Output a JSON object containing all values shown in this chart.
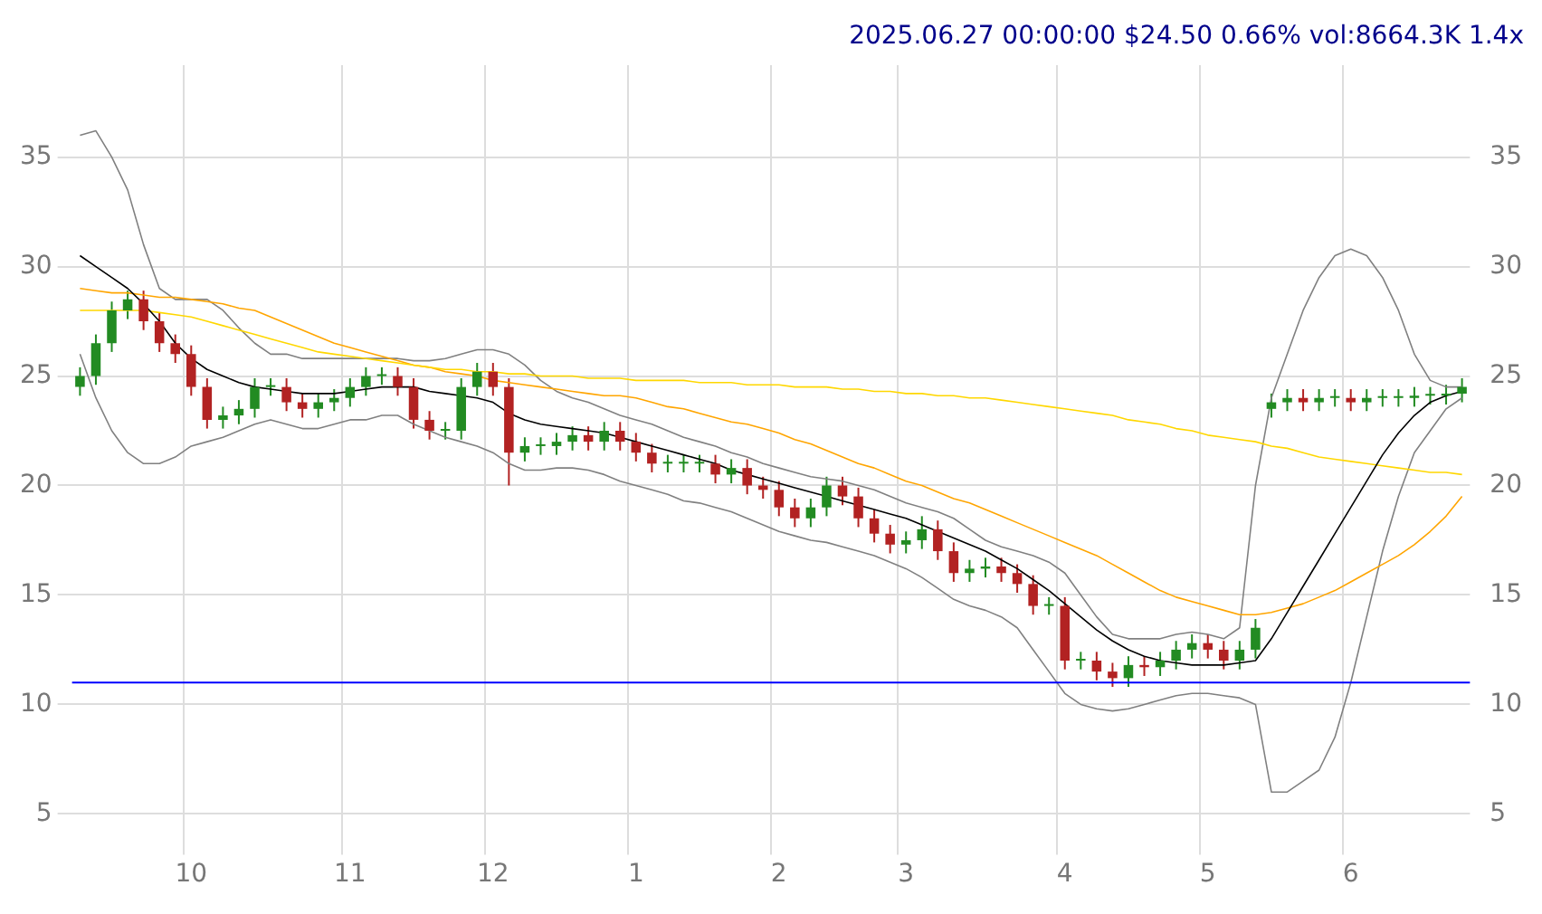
{
  "chart_data": {
    "type": "candlestick",
    "title": "2025.06.27 00:00:00 $24.50 0.66% vol:8664.3K 1.4x",
    "categories": [
      null,
      null,
      null,
      null,
      null,
      null,
      null,
      "10",
      null,
      null,
      null,
      null,
      null,
      null,
      null,
      null,
      null,
      "11",
      null,
      null,
      null,
      null,
      null,
      null,
      null,
      null,
      "12",
      null,
      null,
      null,
      null,
      null,
      null,
      null,
      null,
      "1",
      null,
      null,
      null,
      null,
      null,
      null,
      null,
      null,
      "2",
      null,
      null,
      null,
      null,
      null,
      null,
      null,
      "3",
      null,
      null,
      null,
      null,
      null,
      null,
      null,
      null,
      null,
      "4",
      null,
      null,
      null,
      null,
      null,
      null,
      null,
      null,
      "5",
      null,
      null,
      null,
      null,
      null,
      null,
      null,
      null,
      "6",
      null,
      null,
      null,
      null,
      null,
      null,
      null
    ],
    "ohlc": [
      [
        24.5,
        25.4,
        24.1,
        25
      ],
      [
        25,
        26.9,
        24.6,
        26.5
      ],
      [
        26.5,
        28.4,
        26.1,
        28
      ],
      [
        28,
        28.9,
        27.6,
        28.5
      ],
      [
        28.5,
        28.9,
        27.1,
        27.5
      ],
      [
        27.5,
        27.9,
        26.1,
        26.5
      ],
      [
        26.5,
        26.9,
        25.6,
        26
      ],
      [
        26,
        26.4,
        24.1,
        24.5
      ],
      [
        24.5,
        24.9,
        22.6,
        23
      ],
      [
        23,
        23.6,
        22.6,
        23.2
      ],
      [
        23.2,
        23.9,
        22.8,
        23.5
      ],
      [
        23.5,
        24.9,
        23.1,
        24.5
      ],
      [
        24.5,
        24.9,
        24.1,
        24.5
      ],
      [
        24.5,
        24.9,
        23.4,
        23.8
      ],
      [
        23.8,
        24.2,
        23.1,
        23.5
      ],
      [
        23.5,
        24.2,
        23.1,
        23.8
      ],
      [
        23.8,
        24.4,
        23.4,
        24
      ],
      [
        24,
        24.9,
        23.6,
        24.5
      ],
      [
        24.5,
        25.4,
        24.1,
        25
      ],
      [
        25,
        25.4,
        24.6,
        25
      ],
      [
        25,
        25.4,
        24.1,
        24.5
      ],
      [
        24.5,
        24.9,
        22.6,
        23
      ],
      [
        23,
        23.4,
        22.1,
        22.5
      ],
      [
        22.5,
        22.9,
        22.1,
        22.5
      ],
      [
        22.5,
        24.9,
        22.1,
        24.5
      ],
      [
        24.5,
        25.6,
        24.1,
        25.2
      ],
      [
        25.2,
        25.6,
        24.1,
        24.5
      ],
      [
        24.5,
        24.9,
        20,
        21.5
      ],
      [
        21.5,
        22.2,
        21.1,
        21.8
      ],
      [
        21.8,
        22.2,
        21.4,
        21.8
      ],
      [
        21.8,
        22.4,
        21.4,
        22
      ],
      [
        22,
        22.7,
        21.6,
        22.3
      ],
      [
        22.3,
        22.7,
        21.6,
        22
      ],
      [
        22,
        22.9,
        21.6,
        22.5
      ],
      [
        22.5,
        22.9,
        21.6,
        22
      ],
      [
        22,
        22.4,
        21.1,
        21.5
      ],
      [
        21.5,
        21.9,
        20.6,
        21
      ],
      [
        21,
        21.4,
        20.6,
        21
      ],
      [
        21,
        21.4,
        20.6,
        21
      ],
      [
        21,
        21.4,
        20.6,
        21
      ],
      [
        21,
        21.4,
        20.1,
        20.5
      ],
      [
        20.5,
        21.2,
        20.1,
        20.8
      ],
      [
        20.8,
        21.2,
        19.6,
        20
      ],
      [
        20,
        20.4,
        19.4,
        19.8
      ],
      [
        19.8,
        20.2,
        18.6,
        19
      ],
      [
        19,
        19.4,
        18.1,
        18.5
      ],
      [
        18.5,
        19.4,
        18.1,
        19
      ],
      [
        19,
        20.4,
        18.6,
        20
      ],
      [
        20,
        20.4,
        19.1,
        19.5
      ],
      [
        19.5,
        19.9,
        18.1,
        18.5
      ],
      [
        18.5,
        18.9,
        17.4,
        17.8
      ],
      [
        17.8,
        18.2,
        16.9,
        17.3
      ],
      [
        17.3,
        17.9,
        16.9,
        17.5
      ],
      [
        17.5,
        18.6,
        17.1,
        18
      ],
      [
        18,
        18.4,
        16.6,
        17
      ],
      [
        17,
        17.4,
        15.6,
        16
      ],
      [
        16,
        16.6,
        15.6,
        16.2
      ],
      [
        16.2,
        16.7,
        15.8,
        16.3
      ],
      [
        16.3,
        16.7,
        15.6,
        16
      ],
      [
        16,
        16.4,
        15.1,
        15.5
      ],
      [
        15.5,
        15.9,
        14.1,
        14.5
      ],
      [
        14.5,
        14.9,
        14.1,
        14.5
      ],
      [
        14.5,
        14.9,
        11.6,
        12
      ],
      [
        12,
        12.4,
        11.6,
        12
      ],
      [
        12,
        12.4,
        11.1,
        11.5
      ],
      [
        11.5,
        11.9,
        10.8,
        11.2
      ],
      [
        11.2,
        12.2,
        10.8,
        11.8
      ],
      [
        11.8,
        12.2,
        11.3,
        11.7
      ],
      [
        11.7,
        12.4,
        11.3,
        12
      ],
      [
        12,
        12.9,
        11.6,
        12.5
      ],
      [
        12.5,
        13.2,
        12.1,
        12.8
      ],
      [
        12.8,
        13.2,
        12.1,
        12.5
      ],
      [
        12.5,
        12.9,
        11.6,
        12
      ],
      [
        12,
        12.9,
        11.6,
        12.5
      ],
      [
        12.5,
        13.9,
        12.1,
        13.5
      ],
      [
        23.5,
        24.2,
        23.1,
        23.8
      ],
      [
        23.8,
        24.4,
        23.4,
        24
      ],
      [
        24,
        24.4,
        23.4,
        23.8
      ],
      [
        23.8,
        24.4,
        23.4,
        24
      ],
      [
        24,
        24.4,
        23.6,
        24
      ],
      [
        24,
        24.4,
        23.4,
        23.8
      ],
      [
        23.8,
        24.4,
        23.4,
        24
      ],
      [
        24,
        24.4,
        23.6,
        24
      ],
      [
        24,
        24.4,
        23.6,
        24
      ],
      [
        24,
        24.5,
        23.6,
        24.1
      ],
      [
        24.1,
        24.5,
        23.7,
        24.1
      ],
      [
        24.1,
        24.6,
        23.7,
        24.2
      ],
      [
        24.2,
        24.9,
        23.8,
        24.5
      ]
    ],
    "series": [
      {
        "type": "line",
        "color": "#000000",
        "values": [
          30.5,
          30,
          29.5,
          29,
          28.3,
          27.5,
          26.5,
          25.8,
          25.3,
          25,
          24.7,
          24.5,
          24.4,
          24.3,
          24.2,
          24.2,
          24.2,
          24.3,
          24.4,
          24.5,
          24.5,
          24.5,
          24.3,
          24.2,
          24.1,
          24,
          23.8,
          23.3,
          23,
          22.8,
          22.7,
          22.6,
          22.5,
          22.4,
          22.2,
          22,
          21.8,
          21.6,
          21.4,
          21.2,
          21,
          20.7,
          20.5,
          20.3,
          20.1,
          19.9,
          19.7,
          19.5,
          19.3,
          19.1,
          18.9,
          18.7,
          18.5,
          18.2,
          17.9,
          17.6,
          17.3,
          17,
          16.6,
          16.2,
          15.7,
          15.2,
          14.6,
          14,
          13.4,
          12.9,
          12.5,
          12.2,
          12,
          11.9,
          11.8,
          11.8,
          11.8,
          11.9,
          12,
          13,
          14.2,
          15.4,
          16.6,
          17.8,
          19,
          20.2,
          21.4,
          22.4,
          23.2,
          23.8,
          24.1,
          24.3
        ]
      },
      {
        "type": "line",
        "color": "#ffd700",
        "values": [
          28,
          28,
          28,
          28,
          28,
          27.9,
          27.8,
          27.7,
          27.5,
          27.3,
          27.1,
          26.9,
          26.7,
          26.5,
          26.3,
          26.1,
          26,
          25.9,
          25.8,
          25.7,
          25.6,
          25.5,
          25.4,
          25.3,
          25.3,
          25.2,
          25.2,
          25.1,
          25.1,
          25,
          25,
          25,
          24.9,
          24.9,
          24.9,
          24.8,
          24.8,
          24.8,
          24.8,
          24.7,
          24.7,
          24.7,
          24.6,
          24.6,
          24.6,
          24.5,
          24.5,
          24.5,
          24.4,
          24.4,
          24.3,
          24.3,
          24.2,
          24.2,
          24.1,
          24.1,
          24,
          24,
          23.9,
          23.8,
          23.7,
          23.6,
          23.5,
          23.4,
          23.3,
          23.2,
          23,
          22.9,
          22.8,
          22.6,
          22.5,
          22.3,
          22.2,
          22.1,
          22,
          21.8,
          21.7,
          21.5,
          21.3,
          21.2,
          21.1,
          21,
          20.9,
          20.8,
          20.7,
          20.6,
          20.6,
          20.5
        ]
      },
      {
        "type": "line",
        "color": "#ffa500",
        "values": [
          29,
          28.9,
          28.8,
          28.8,
          28.7,
          28.6,
          28.6,
          28.5,
          28.4,
          28.3,
          28.1,
          28,
          27.7,
          27.4,
          27.1,
          26.8,
          26.5,
          26.3,
          26.1,
          25.9,
          25.7,
          25.5,
          25.4,
          25.2,
          25.1,
          25,
          24.8,
          24.7,
          24.6,
          24.5,
          24.4,
          24.3,
          24.2,
          24.1,
          24.1,
          24,
          23.8,
          23.6,
          23.5,
          23.3,
          23.1,
          22.9,
          22.8,
          22.6,
          22.4,
          22.1,
          21.9,
          21.6,
          21.3,
          21,
          20.8,
          20.5,
          20.2,
          20,
          19.7,
          19.4,
          19.2,
          18.9,
          18.6,
          18.3,
          18,
          17.7,
          17.4,
          17.1,
          16.8,
          16.4,
          16,
          15.6,
          15.2,
          14.9,
          14.7,
          14.5,
          14.3,
          14.1,
          14.1,
          14.2,
          14.4,
          14.6,
          14.9,
          15.2,
          15.6,
          16,
          16.4,
          16.8,
          17.3,
          17.9,
          18.6,
          19.5
        ]
      },
      {
        "type": "line",
        "color": "#808080",
        "values": [
          36,
          36.2,
          35,
          33.5,
          31,
          29,
          28.5,
          28.5,
          28.5,
          28,
          27.2,
          26.5,
          26,
          26,
          25.8,
          25.8,
          25.8,
          25.8,
          25.8,
          25.8,
          25.8,
          25.7,
          25.7,
          25.8,
          26,
          26.2,
          26.2,
          26,
          25.5,
          24.8,
          24.3,
          24,
          23.8,
          23.5,
          23.2,
          23,
          22.8,
          22.5,
          22.2,
          22,
          21.8,
          21.5,
          21.3,
          21,
          20.8,
          20.6,
          20.4,
          20.3,
          20.2,
          20,
          19.8,
          19.5,
          19.2,
          19,
          18.8,
          18.5,
          18,
          17.5,
          17.2,
          17,
          16.8,
          16.5,
          16,
          15,
          14,
          13.2,
          13,
          13,
          13,
          13.2,
          13.3,
          13.2,
          13,
          13.5,
          20,
          24,
          26,
          28,
          29.5,
          30.5,
          30.8,
          30.5,
          29.5,
          28,
          26,
          24.8,
          24.5,
          24.5
        ]
      },
      {
        "type": "line",
        "color": "#808080",
        "values": [
          26,
          24,
          22.5,
          21.5,
          21,
          21,
          21.3,
          21.8,
          22,
          22.2,
          22.5,
          22.8,
          23,
          22.8,
          22.6,
          22.6,
          22.8,
          23,
          23,
          23.2,
          23.2,
          22.8,
          22.5,
          22.2,
          22,
          21.8,
          21.5,
          21,
          20.7,
          20.7,
          20.8,
          20.8,
          20.7,
          20.5,
          20.2,
          20,
          19.8,
          19.6,
          19.3,
          19.2,
          19,
          18.8,
          18.5,
          18.2,
          17.9,
          17.7,
          17.5,
          17.4,
          17.2,
          17,
          16.8,
          16.5,
          16.2,
          15.8,
          15.3,
          14.8,
          14.5,
          14.3,
          14,
          13.5,
          12.5,
          11.5,
          10.5,
          10,
          9.8,
          9.7,
          9.8,
          10,
          10.2,
          10.4,
          10.5,
          10.5,
          10.4,
          10.3,
          10,
          6,
          6,
          6.5,
          7,
          8.5,
          11,
          14,
          17,
          19.5,
          21.5,
          22.5,
          23.5,
          24
        ]
      }
    ],
    "ref_lines": [
      {
        "axis": "y",
        "value": 11,
        "color": "#0000ff"
      }
    ],
    "ylim": [
      3.8,
      39.2
    ],
    "yticks": [
      5,
      10,
      15,
      20,
      25,
      30,
      35
    ],
    "y2lim": [
      3.8,
      39.2
    ],
    "y2ticks": [
      5,
      10,
      15,
      20,
      25,
      30,
      35
    ],
    "grid": true
  }
}
